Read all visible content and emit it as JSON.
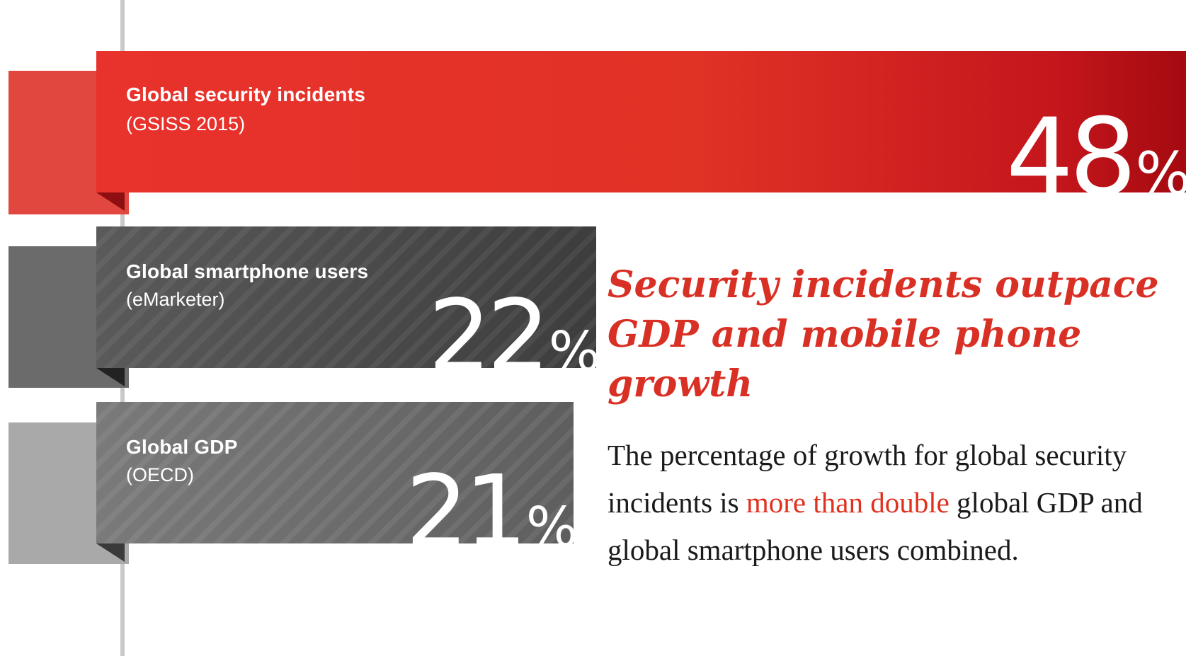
{
  "chart_data": {
    "type": "bar",
    "orientation": "horizontal",
    "categories": [
      "Global security incidents",
      "Global smartphone users",
      "Global GDP"
    ],
    "values": [
      48,
      22,
      21
    ],
    "bars": [
      {
        "label": "Global security incidents",
        "source": "(GSISS 2015)",
        "value": 48,
        "value_text": "48",
        "unit": "%",
        "color": "#e13226"
      },
      {
        "label": "Global smartphone users",
        "source": "(eMarketer)",
        "value": 22,
        "value_text": "22",
        "unit": "%",
        "color": "#3f3f3f"
      },
      {
        "label": "Global GDP",
        "source": "(OECD)",
        "value": 21,
        "value_text": "21",
        "unit": "%",
        "color": "#6e6e6e"
      }
    ],
    "title": "",
    "xlabel": "",
    "ylabel": "",
    "grid": false,
    "legend": "none"
  },
  "headline": "Security incidents outpace GDP and mobile phone growth",
  "body": {
    "before": "The percentage of growth for global security incidents is ",
    "highlight": "more than double",
    "after": " global GDP and global smartphone users combined."
  },
  "colors": {
    "accent": "#d93025",
    "red_bar": "#e13226",
    "dark_bar": "#3f3f3f",
    "grey_bar": "#6e6e6e",
    "text": "#1a1a1a"
  }
}
